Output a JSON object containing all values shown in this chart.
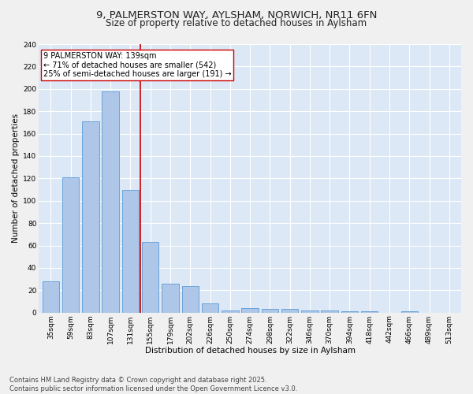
{
  "title1": "9, PALMERSTON WAY, AYLSHAM, NORWICH, NR11 6FN",
  "title2": "Size of property relative to detached houses in Aylsham",
  "xlabel": "Distribution of detached houses by size in Aylsham",
  "ylabel": "Number of detached properties",
  "bar_color": "#aec6e8",
  "bar_edge_color": "#5b9bd5",
  "background_color": "#dce8f5",
  "fig_background": "#f0f0f0",
  "annotation_text": "9 PALMERSTON WAY: 139sqm\n← 71% of detached houses are smaller (542)\n25% of semi-detached houses are larger (191) →",
  "vline_x": 4.5,
  "vline_color": "#cc0000",
  "annotation_box_color": "#ffffff",
  "annotation_box_edge": "#cc0000",
  "categories": [
    "35sqm",
    "59sqm",
    "83sqm",
    "107sqm",
    "131sqm",
    "155sqm",
    "179sqm",
    "202sqm",
    "226sqm",
    "250sqm",
    "274sqm",
    "298sqm",
    "322sqm",
    "346sqm",
    "370sqm",
    "394sqm",
    "418sqm",
    "442sqm",
    "466sqm",
    "489sqm",
    "513sqm"
  ],
  "values": [
    28,
    121,
    171,
    198,
    110,
    63,
    26,
    24,
    8,
    2,
    4,
    3,
    3,
    2,
    2,
    1,
    1,
    0,
    1,
    0,
    0
  ],
  "ylim": [
    0,
    240
  ],
  "yticks": [
    0,
    20,
    40,
    60,
    80,
    100,
    120,
    140,
    160,
    180,
    200,
    220,
    240
  ],
  "footer": "Contains HM Land Registry data © Crown copyright and database right 2025.\nContains public sector information licensed under the Open Government Licence v3.0.",
  "title_fontsize": 9.5,
  "subtitle_fontsize": 8.5,
  "axis_fontsize": 7.5,
  "tick_fontsize": 6.5,
  "footer_fontsize": 6.0,
  "annot_fontsize": 7.0
}
